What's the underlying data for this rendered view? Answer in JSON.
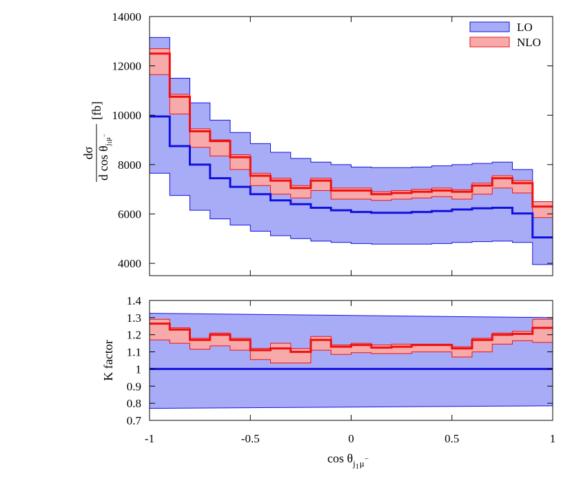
{
  "chart_data": [
    {
      "type": "line",
      "panel": "main",
      "title": "",
      "xlabel": "",
      "ylabel": "dσ / d cos θ_{j1 μ−} [fb]",
      "ylabel_parts": {
        "numerator": "dσ",
        "denominator": "d cos θ",
        "subscript": "j",
        "subscript2": "1",
        "subscript3": "μ",
        "superscript": "−",
        "unit": "[fb]"
      },
      "xlim": [
        -1,
        1
      ],
      "ylim": [
        3500,
        14000
      ],
      "yticks": [
        4000,
        6000,
        8000,
        10000,
        12000,
        14000
      ],
      "ytick_labels": [
        "4000",
        "6000",
        "8000",
        "10000",
        "12000",
        "14000"
      ],
      "xticks": [
        -1,
        -0.5,
        0,
        0.5,
        1
      ],
      "bin_edges": [
        -1,
        -0.9,
        -0.8,
        -0.7,
        -0.6,
        -0.5,
        -0.4,
        -0.3,
        -0.2,
        -0.1,
        0,
        0.1,
        0.2,
        0.3,
        0.4,
        0.5,
        0.6,
        0.7,
        0.8,
        0.9,
        1
      ],
      "legend": {
        "position": "top-right",
        "entries": [
          "LO",
          "NLO"
        ]
      },
      "series": [
        {
          "name": "LO",
          "color": "#1010dd",
          "band_color": "#a8acf7",
          "central": [
            9950,
            8750,
            8000,
            7450,
            7100,
            6800,
            6550,
            6400,
            6250,
            6150,
            6080,
            6050,
            6050,
            6080,
            6120,
            6180,
            6230,
            6250,
            6020,
            5050
          ],
          "upper": [
            13150,
            11500,
            10500,
            9800,
            9300,
            8850,
            8500,
            8250,
            8100,
            8000,
            7900,
            7880,
            7880,
            7900,
            7950,
            8000,
            8050,
            8100,
            7800,
            6500
          ],
          "lower": [
            7650,
            6750,
            6150,
            5800,
            5550,
            5300,
            5120,
            5000,
            4900,
            4850,
            4800,
            4780,
            4780,
            4780,
            4800,
            4850,
            4880,
            4900,
            4850,
            3950
          ]
        },
        {
          "name": "NLO",
          "color": "#ee1111",
          "band_color": "#f7aaaa",
          "central": [
            12500,
            10750,
            9350,
            8950,
            8300,
            7550,
            7350,
            7050,
            7350,
            6950,
            6950,
            6800,
            6850,
            6900,
            6950,
            6900,
            7150,
            7450,
            7250,
            6300
          ],
          "upper": [
            12700,
            10850,
            9450,
            9000,
            8400,
            7650,
            7450,
            7150,
            7450,
            7050,
            7050,
            6900,
            6950,
            7000,
            7050,
            6980,
            7250,
            7550,
            7350,
            6500
          ],
          "lower": [
            11650,
            10050,
            8700,
            8350,
            7800,
            7150,
            6800,
            6650,
            6950,
            6600,
            6600,
            6550,
            6600,
            6650,
            6700,
            6600,
            6800,
            7050,
            6850,
            5850
          ]
        }
      ]
    },
    {
      "type": "line",
      "panel": "ratio",
      "title": "",
      "xlabel": "cos θ_{j1 μ−}",
      "xlabel_parts": {
        "base": "cos θ",
        "subscript": "j",
        "subscript2": "1",
        "subscript3": "μ",
        "superscript": "−"
      },
      "ylabel": "K factor",
      "xlim": [
        -1,
        1
      ],
      "ylim": [
        0.7,
        1.4
      ],
      "yticks": [
        0.7,
        0.8,
        0.9,
        1.0,
        1.1,
        1.2,
        1.3,
        1.4
      ],
      "ytick_labels": [
        "0.7",
        "0.8",
        "0.9",
        "1",
        "1.1",
        "1.2",
        "1.3",
        "1.4"
      ],
      "xticks": [
        -1,
        -0.5,
        0,
        0.5,
        1
      ],
      "xtick_labels": [
        "-1",
        "-0.5",
        "0",
        "0.5",
        "1"
      ],
      "bin_edges": [
        -1,
        -0.9,
        -0.8,
        -0.7,
        -0.6,
        -0.5,
        -0.4,
        -0.3,
        -0.2,
        -0.1,
        0,
        0.1,
        0.2,
        0.3,
        0.4,
        0.5,
        0.6,
        0.7,
        0.8,
        0.9,
        1
      ],
      "series": [
        {
          "name": "LO",
          "color": "#1010dd",
          "band_color": "#a8acf7",
          "central": [
            1,
            1,
            1,
            1,
            1,
            1,
            1,
            1,
            1,
            1,
            1,
            1,
            1,
            1,
            1,
            1,
            1,
            1,
            1,
            1
          ],
          "upper_line": [
            1.325,
            1.3
          ],
          "lower_line": [
            0.77,
            0.785
          ]
        },
        {
          "name": "NLO",
          "color": "#ee1111",
          "band_color": "#f7aaaa",
          "central": [
            1.265,
            1.23,
            1.17,
            1.2,
            1.17,
            1.11,
            1.12,
            1.1,
            1.17,
            1.13,
            1.14,
            1.125,
            1.13,
            1.14,
            1.14,
            1.12,
            1.17,
            1.2,
            1.205,
            1.24
          ],
          "upper": [
            1.29,
            1.24,
            1.18,
            1.21,
            1.18,
            1.12,
            1.15,
            1.12,
            1.19,
            1.14,
            1.15,
            1.14,
            1.145,
            1.145,
            1.145,
            1.13,
            1.18,
            1.21,
            1.22,
            1.29
          ],
          "lower": [
            1.17,
            1.15,
            1.115,
            1.135,
            1.11,
            1.055,
            1.035,
            1.035,
            1.11,
            1.085,
            1.095,
            1.09,
            1.09,
            1.1,
            1.1,
            1.07,
            1.1,
            1.145,
            1.165,
            1.155
          ]
        }
      ]
    }
  ]
}
